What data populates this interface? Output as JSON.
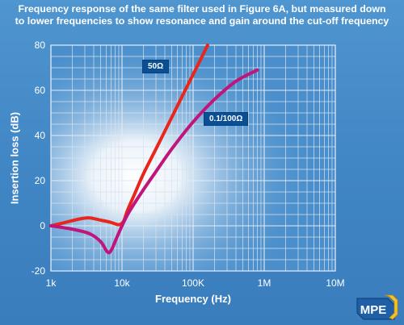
{
  "title_line1": "Frequency response of the same filter used in Figure 6A, but measured down",
  "title_line2": "to lower frequencies to show resonance and gain around the cut-off frequency",
  "logo_text": "MPE",
  "chart_data": {
    "type": "line",
    "title": "Frequency response of the same filter used in Figure 6A, but measured down to lower frequencies to show resonance and gain around the cut-off frequency",
    "xlabel": "Frequency (Hz)",
    "ylabel": "Insertion loss (dB)",
    "x_scale": "log",
    "xlim": [
      1000,
      10000000
    ],
    "ylim": [
      -20,
      80
    ],
    "x_ticks": [
      1000,
      10000,
      100000,
      1000000,
      10000000
    ],
    "x_tick_labels": [
      "1k",
      "10k",
      "100K",
      "1M",
      "10M"
    ],
    "y_ticks": [
      -20,
      0,
      20,
      40,
      60,
      80
    ],
    "y_tick_labels": [
      "-20",
      "0",
      "20",
      "40",
      "60",
      "80"
    ],
    "grid": true,
    "series": [
      {
        "name": "50Ω",
        "color": "#e8261c",
        "points": [
          [
            1000,
            0
          ],
          [
            1600,
            1.5
          ],
          [
            2500,
            3
          ],
          [
            3500,
            3.5
          ],
          [
            5000,
            2.5
          ],
          [
            7000,
            1.5
          ],
          [
            9000,
            0.5
          ],
          [
            10500,
            2
          ],
          [
            12000,
            7
          ],
          [
            15000,
            14
          ],
          [
            20000,
            23
          ],
          [
            30000,
            34
          ],
          [
            50000,
            48
          ],
          [
            80000,
            61
          ],
          [
            120000,
            72
          ],
          [
            160000,
            80
          ]
        ]
      },
      {
        "name": "0.1/100Ω",
        "color": "#c0157a",
        "points": [
          [
            1000,
            0
          ],
          [
            2000,
            -1.5
          ],
          [
            3500,
            -3.5
          ],
          [
            5000,
            -7
          ],
          [
            6200,
            -11.5
          ],
          [
            7000,
            -11
          ],
          [
            8500,
            -5
          ],
          [
            10000,
            0
          ],
          [
            12000,
            5
          ],
          [
            15000,
            10
          ],
          [
            20000,
            16
          ],
          [
            30000,
            24
          ],
          [
            50000,
            34
          ],
          [
            100000,
            46
          ],
          [
            200000,
            56
          ],
          [
            400000,
            64
          ],
          [
            800000,
            69
          ]
        ]
      }
    ]
  }
}
